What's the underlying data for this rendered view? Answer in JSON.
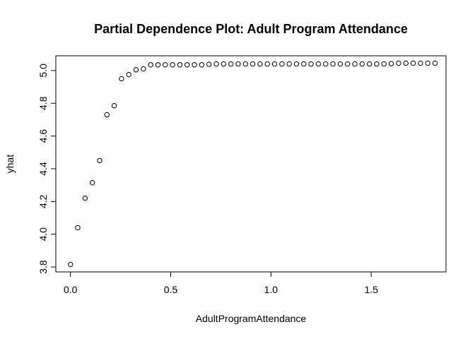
{
  "chart_data": {
    "type": "scatter",
    "title": "Partial Dependence Plot: Adult Program Attendance",
    "xlabel": "AdultProgramAttendance",
    "ylabel": "yhat",
    "xlim": [
      -0.073,
      1.873
    ],
    "ylim": [
      3.77,
      5.09
    ],
    "xticks": [
      0.0,
      0.5,
      1.0,
      1.5
    ],
    "xtick_labels": [
      "0.0",
      "0.5",
      "1.0",
      "1.5"
    ],
    "yticks": [
      3.8,
      4.0,
      4.2,
      4.4,
      4.6,
      4.8,
      5.0
    ],
    "ytick_labels": [
      "3.8",
      "4.0",
      "4.2",
      "4.4",
      "4.6",
      "4.8",
      "5.0"
    ],
    "grid": false,
    "marker": "open-circle",
    "x": [
      0.0,
      0.0364,
      0.0727,
      0.1091,
      0.1455,
      0.1818,
      0.2182,
      0.2545,
      0.2909,
      0.3273,
      0.3636,
      0.4,
      0.4364,
      0.4727,
      0.5091,
      0.5455,
      0.5818,
      0.6182,
      0.6545,
      0.6909,
      0.7273,
      0.7636,
      0.8,
      0.8364,
      0.8727,
      0.9091,
      0.9455,
      0.9818,
      1.0182,
      1.0545,
      1.0909,
      1.1273,
      1.1636,
      1.2,
      1.2364,
      1.2727,
      1.3091,
      1.3455,
      1.3818,
      1.4182,
      1.4545,
      1.4909,
      1.5273,
      1.5636,
      1.6,
      1.6364,
      1.6727,
      1.7091,
      1.7455,
      1.7818,
      1.8182
    ],
    "y": [
      3.815,
      4.04,
      4.22,
      4.315,
      4.45,
      4.73,
      4.785,
      4.95,
      4.975,
      5.005,
      5.01,
      5.035,
      5.035,
      5.035,
      5.035,
      5.035,
      5.035,
      5.035,
      5.035,
      5.038,
      5.04,
      5.04,
      5.04,
      5.04,
      5.04,
      5.04,
      5.04,
      5.04,
      5.04,
      5.04,
      5.04,
      5.04,
      5.04,
      5.04,
      5.04,
      5.04,
      5.04,
      5.04,
      5.04,
      5.04,
      5.04,
      5.04,
      5.04,
      5.04,
      5.042,
      5.045,
      5.045,
      5.045,
      5.045,
      5.045,
      5.045
    ]
  }
}
